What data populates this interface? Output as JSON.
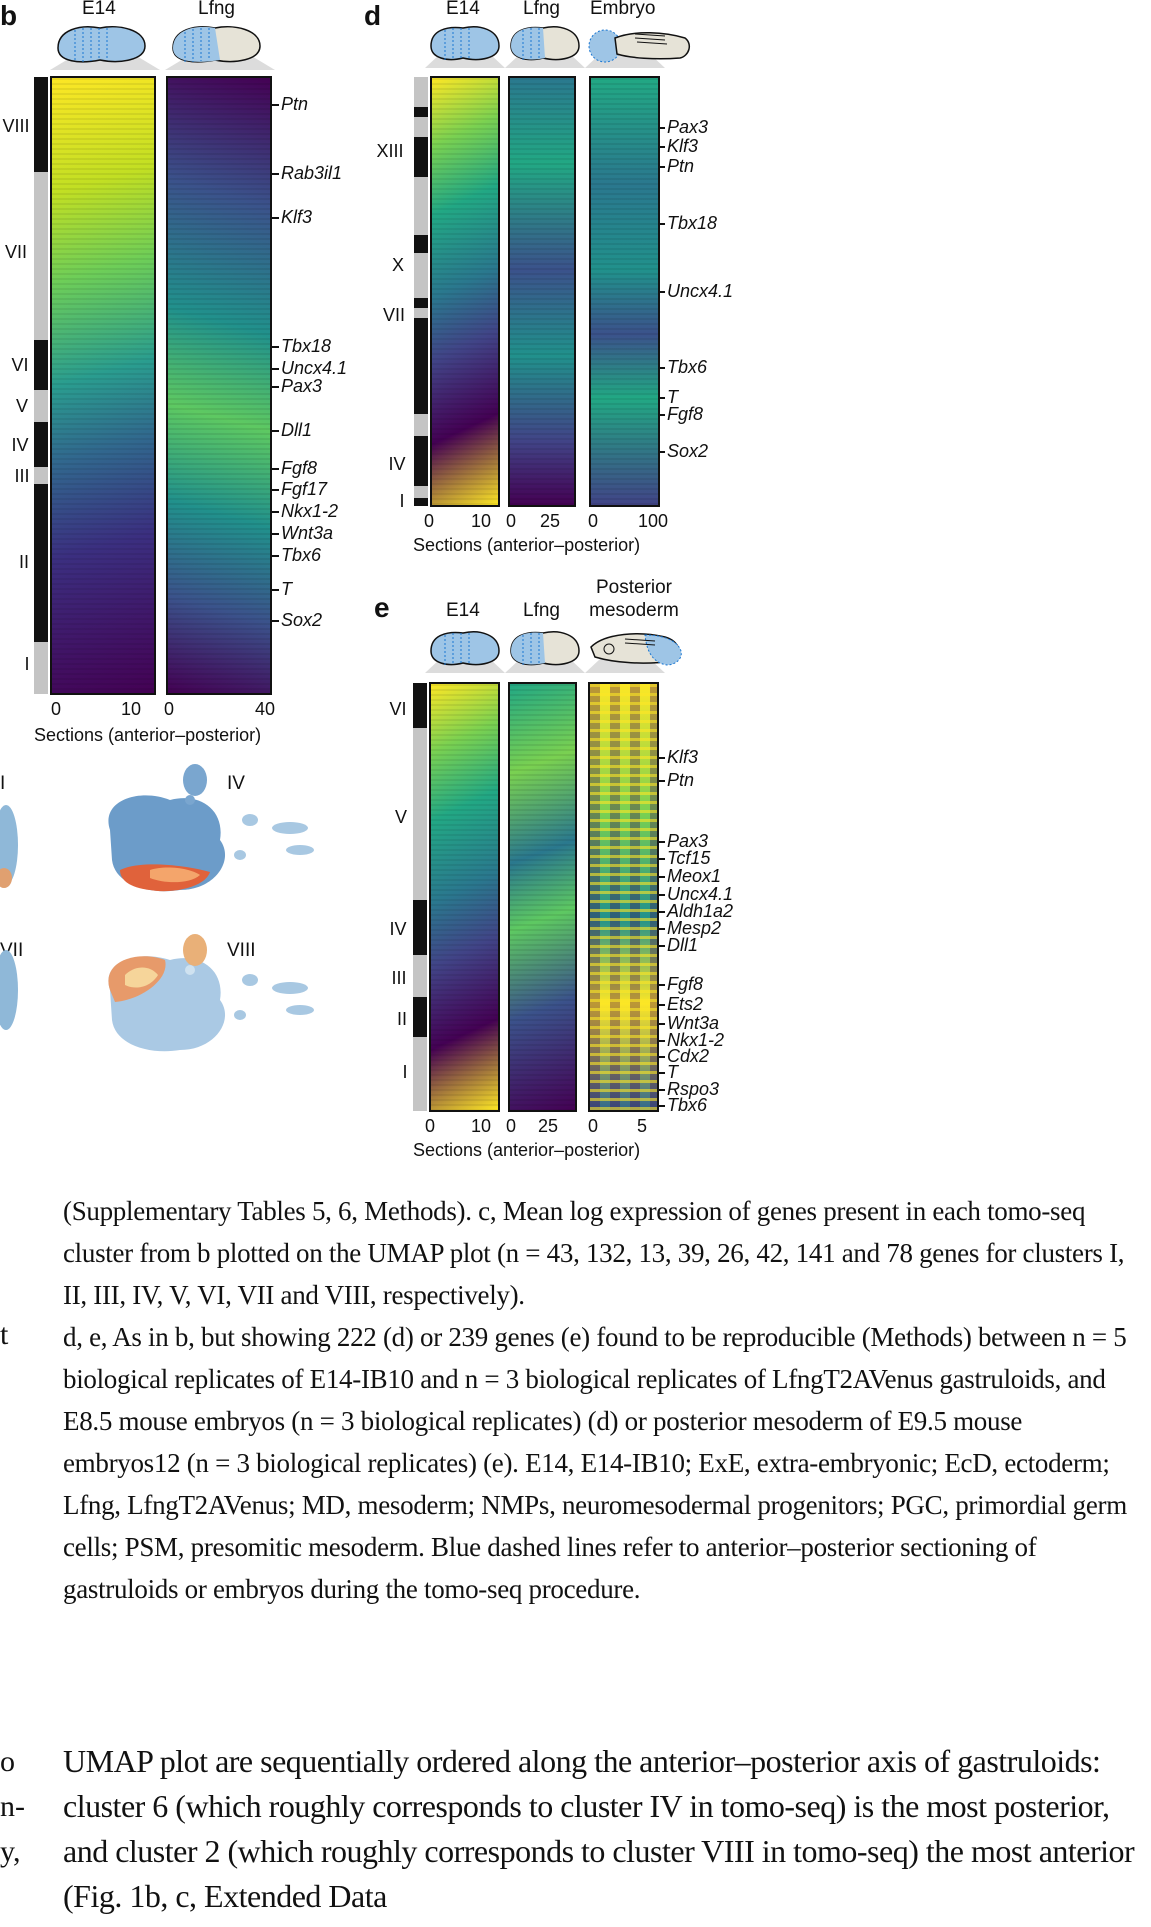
{
  "panel_b": {
    "label": "b",
    "columns": [
      "E14",
      "Lfng"
    ],
    "clusters": [
      "VIII",
      "VII",
      "VI",
      "V",
      "IV",
      "III",
      "II",
      "I"
    ],
    "genes": [
      "Ptn",
      "Rab3il1",
      "Klf3",
      "Tbx18",
      "Uncx4.1",
      "Pax3",
      "Dll1",
      "Fgf8",
      "Fgf17",
      "Nkx1-2",
      "Wnt3a",
      "Tbx6",
      "T",
      "Sox2"
    ],
    "ticks": [
      [
        "0",
        "10"
      ],
      [
        "0",
        "40"
      ]
    ],
    "xlabel": "Sections (anterior–posterior)"
  },
  "panel_c": {
    "labels": [
      "I",
      "IV",
      "VII",
      "VIII"
    ]
  },
  "panel_d": {
    "label": "d",
    "columns": [
      "E14",
      "Lfng",
      "Embryo"
    ],
    "clusters": [
      "XIII",
      "X",
      "VII",
      "IV",
      "I"
    ],
    "genes": [
      "Pax3",
      "Klf3",
      "Ptn",
      "Tbx18",
      "Uncx4.1",
      "Tbx6",
      "T",
      "Fgf8",
      "Sox2"
    ],
    "ticks": [
      [
        "0",
        "10"
      ],
      [
        "0",
        "25"
      ],
      [
        "0",
        "100"
      ]
    ],
    "xlabel": "Sections (anterior–posterior)"
  },
  "panel_e": {
    "label": "e",
    "columns": [
      "E14",
      "Lfng",
      "Posterior mesoderm"
    ],
    "clusters": [
      "VI",
      "V",
      "IV",
      "III",
      "II",
      "I"
    ],
    "genes": [
      "Klf3",
      "Ptn",
      "Pax3",
      "Tcf15",
      "Meox1",
      "Uncx4.1",
      "Aldh1a2",
      "Mesp2",
      "Dll1",
      "Fgf8",
      "Ets2",
      "Wnt3a",
      "Nkx1-2",
      "Cdx2",
      "T",
      "Rspo3",
      "Tbx6"
    ],
    "ticks": [
      [
        "0",
        "10"
      ],
      [
        "0",
        "25"
      ],
      [
        "0",
        "5"
      ]
    ],
    "xlabel": "Sections (anterior–posterior)"
  },
  "caption": {
    "p1": "(Supplementary Tables 5, 6, Methods). c, Mean log expression of genes present in each tomo-seq cluster from b plotted on the UMAP plot (n = 43, 132, 13, 39, 26, 42, 141 and 78 genes for clusters I, II, III, IV, V, VI, VII and VIII, respectively).",
    "p2": "d, e, As in b, but showing 222 (d) or 239 genes (e) found to be reproducible (Methods) between n = 5 biological replicates of E14-IB10 and n = 3 biological replicates of LfngT2AVenus gastruloids, and E8.5 mouse embryos (n = 3 biological replicates) (d) or posterior mesoderm of E9.5 mouse embryos12 (n = 3 biological replicates) (e). E14, E14-IB10; ExE, extra-embryonic; EcD, ectoderm; Lfng, LfngT2AVenus; MD, mesoderm; NMPs, neuromesodermal progenitors; PGC, primordial germ cells; PSM, presomitic mesoderm. Blue dashed lines refer to anterior–posterior sectioning of gastruloids or embryos during the tomo-seq procedure."
  },
  "body_text": "UMAP plot are sequentially ordered along the anterior–posterior axis of gastruloids: cluster 6 (which roughly corresponds to cluster IV in tomo-seq) is the most posterior, and cluster 2 (which roughly corresponds to cluster VIII in tomo-seq) the most anterior (Fig. 1b, c, Extended Data",
  "margin_fragments": [
    "t",
    "o",
    "n-",
    "y,"
  ]
}
